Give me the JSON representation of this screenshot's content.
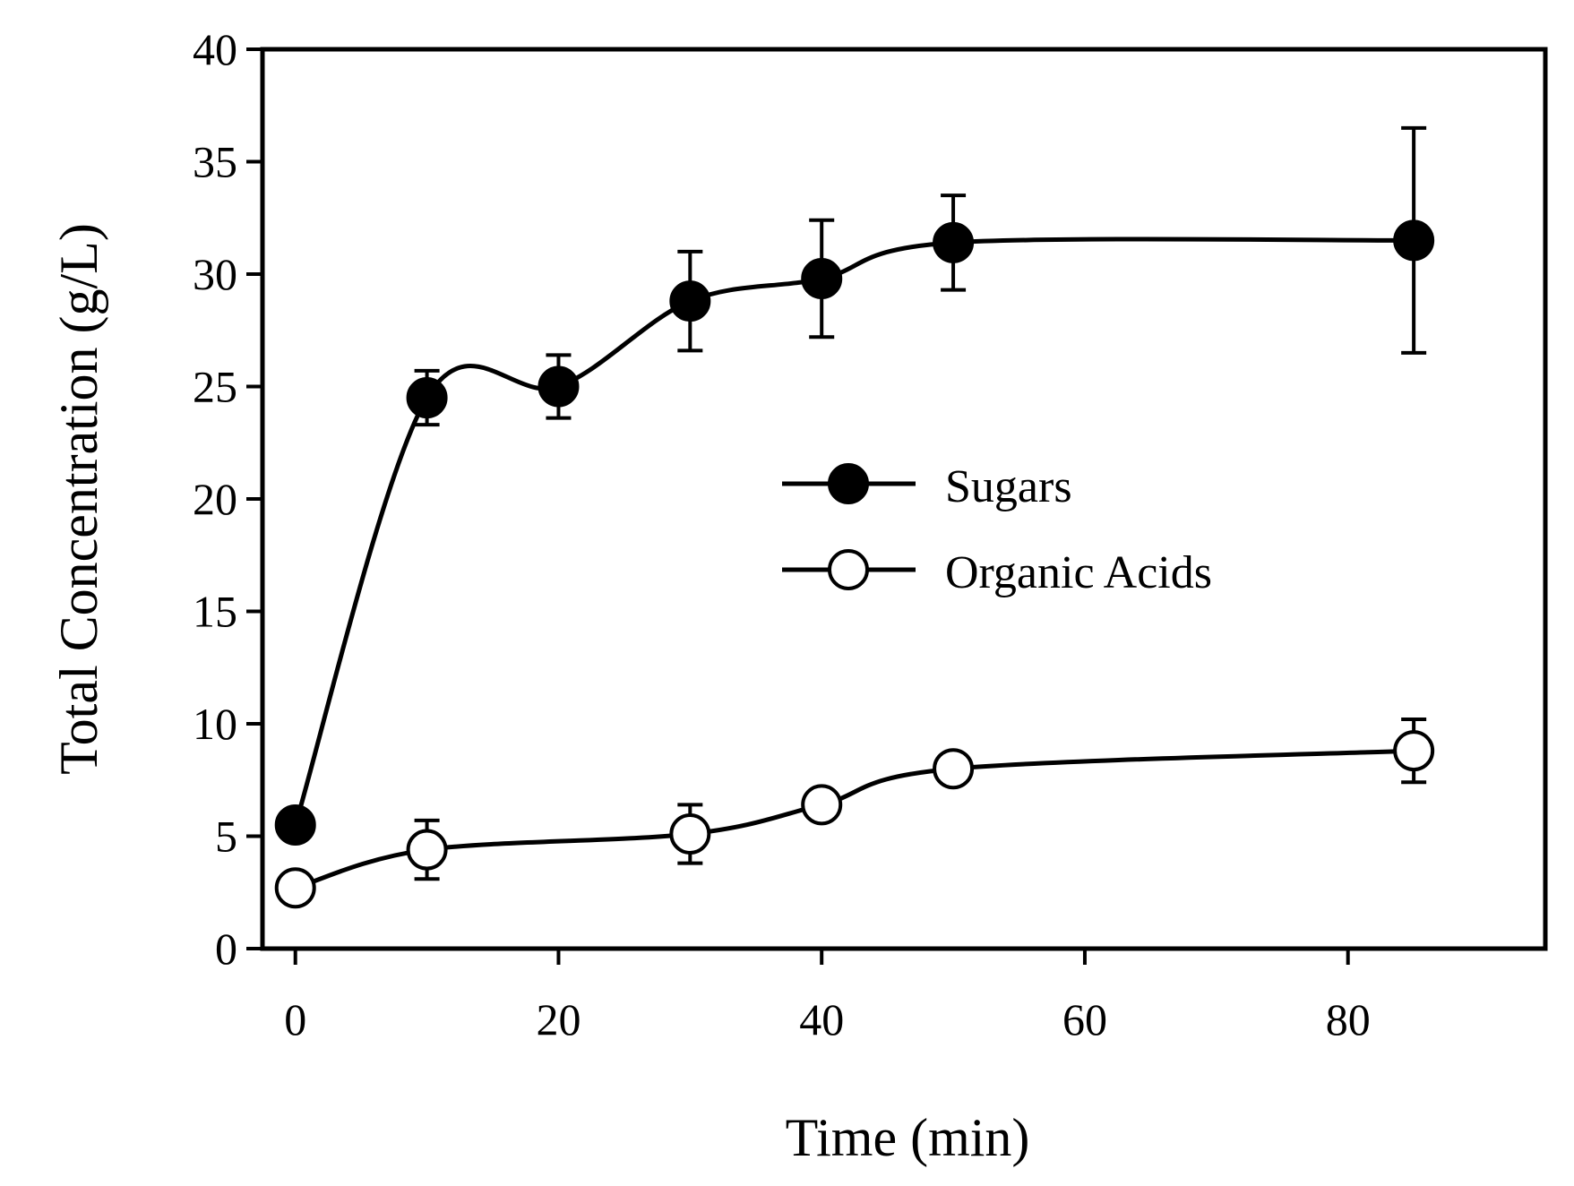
{
  "chart_data": {
    "type": "line",
    "title": "",
    "xlabel": "Time (min)",
    "ylabel": "Total Concentration (g/L)",
    "xlim": [
      -2.5,
      95
    ],
    "ylim": [
      0,
      40
    ],
    "xticks": [
      0,
      20,
      40,
      60,
      80
    ],
    "yticks": [
      0,
      5,
      10,
      15,
      20,
      25,
      30,
      35,
      40
    ],
    "grid": false,
    "legend_position": "center-right",
    "series": [
      {
        "name": "Sugars",
        "marker": "filled-circle",
        "color": "#000000",
        "x": [
          0,
          10,
          20,
          30,
          40,
          50,
          85
        ],
        "y": [
          5.5,
          24.5,
          25.0,
          28.8,
          29.8,
          31.4,
          31.5
        ],
        "err": [
          0,
          1.2,
          1.4,
          2.2,
          2.6,
          2.1,
          5.0
        ]
      },
      {
        "name": "Organic Acids",
        "marker": "open-circle",
        "color": "#000000",
        "x": [
          0,
          10,
          30,
          40,
          50,
          85
        ],
        "y": [
          2.7,
          4.4,
          5.1,
          6.4,
          8.0,
          8.8
        ],
        "err": [
          0,
          1.3,
          1.3,
          0,
          0,
          1.4
        ]
      }
    ]
  }
}
